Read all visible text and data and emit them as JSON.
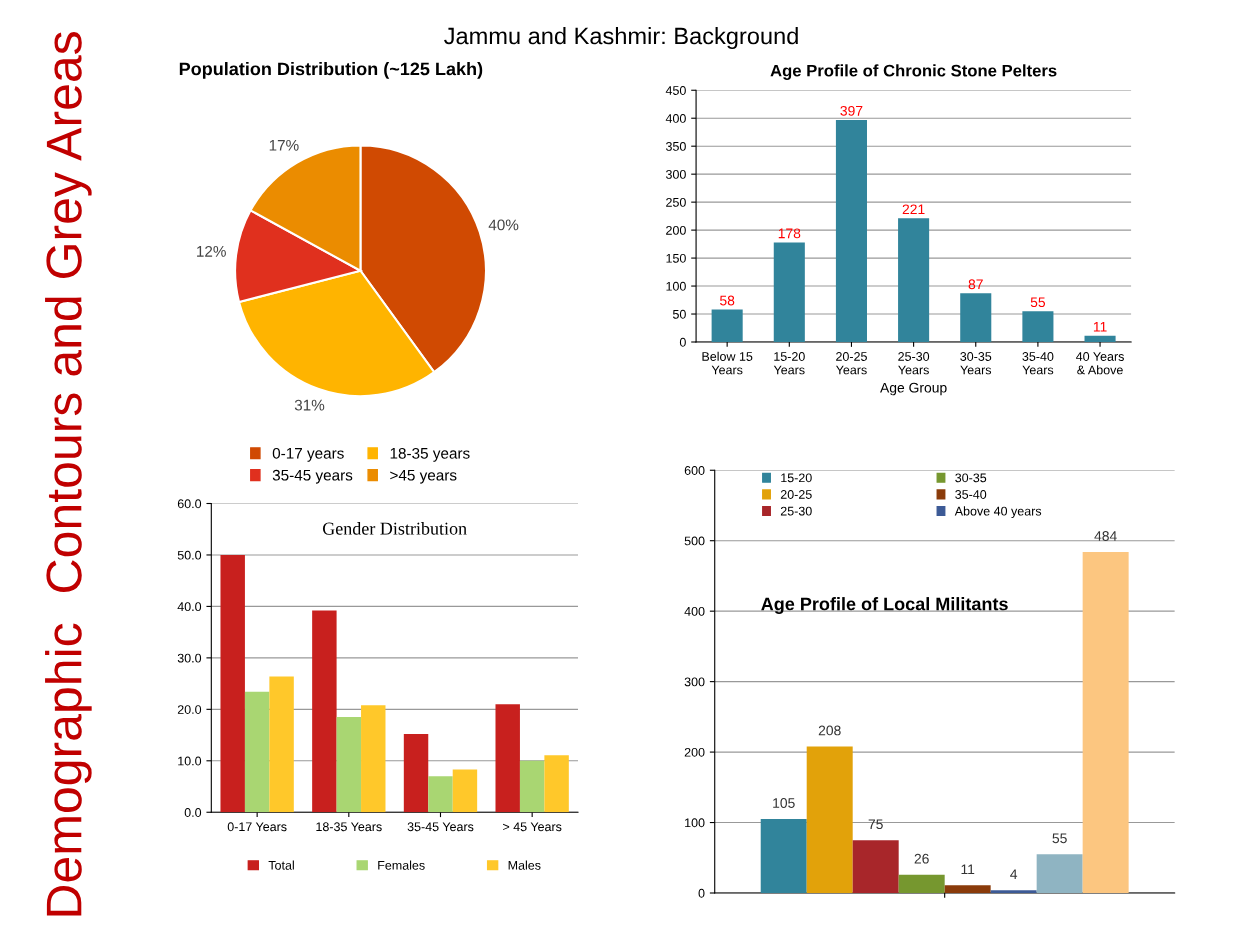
{
  "chart_data": [
    {
      "type": "pie",
      "title": "Population Distribution (~125 Lakh)",
      "categories": [
        "0-17 years",
        "18-35 years",
        "35-45 years",
        ">45 years"
      ],
      "values": [
        40,
        31,
        12,
        17
      ],
      "colors": [
        "#d04a02",
        "#ffb400",
        "#e0301e",
        "#eb8c00"
      ],
      "value_labels": [
        "40%",
        "31%",
        "12%",
        "17%"
      ],
      "legend": "bottom",
      "annotations": [
        "Jammu and Kashmir: Background",
        "Demographic  Contours and Grey Areas"
      ]
    },
    {
      "type": "bar",
      "title": "Age Profile of Chronic Stone Pelters",
      "xlabel": "Age Group",
      "categories": [
        "Below 15\nYears",
        "15-20\nYears",
        "20-25\nYears",
        "25-30\nYears",
        "30-35\nYears",
        "35-40\nYears",
        "40 Years\n& Above"
      ],
      "values": [
        58,
        178,
        397,
        221,
        87,
        55,
        11
      ],
      "color": "#31849b",
      "data_labels": true,
      "ylim": [
        0,
        450
      ],
      "yticks": [
        0,
        50,
        100,
        150,
        200,
        250,
        300,
        350,
        400,
        450
      ],
      "grid": "y"
    },
    {
      "type": "bar",
      "title": "Gender Distribution",
      "categories": [
        "0-17 Years",
        "18-35 Years",
        "35-45 Years",
        "> 45 Years"
      ],
      "series": [
        {
          "name": "Total",
          "color": "#c8201e",
          "values": [
            50.0,
            39.2,
            15.2,
            21.0
          ]
        },
        {
          "name": "Females",
          "color": "#a9d672",
          "values": [
            23.4,
            18.5,
            7.0,
            10.0
          ]
        },
        {
          "name": "Males",
          "color": "#ffc82a",
          "values": [
            26.4,
            20.8,
            8.3,
            11.1
          ]
        }
      ],
      "ylim": [
        0,
        60
      ],
      "yticks": [
        {
          "value": 0,
          "label": "0.0"
        },
        {
          "value": 10,
          "label": "10.0"
        },
        {
          "value": 20,
          "label": "20.0"
        },
        {
          "value": 30,
          "label": "30.0"
        },
        {
          "value": 40,
          "label": "40.0"
        },
        {
          "value": 50,
          "label": "50.0"
        },
        {
          "value": 60,
          "label": "60.0"
        }
      ],
      "grid": "y",
      "legend": "bottom"
    },
    {
      "type": "bar",
      "title": "Age Profile of Local Militants",
      "categories": [
        null
      ],
      "series": [
        {
          "name": "15-20",
          "color": "#31849b",
          "values": [
            105
          ]
        },
        {
          "name": "20-25",
          "color": "#e2a20a",
          "values": [
            208
          ]
        },
        {
          "name": "25-30",
          "color": "#a8262a",
          "values": [
            75
          ]
        },
        {
          "name": "30-35",
          "color": "#76972f",
          "values": [
            26
          ]
        },
        {
          "name": "35-40",
          "color": "#8a3b0a",
          "values": [
            11
          ]
        },
        {
          "name": "Above 40 years",
          "color": "#3c5a96",
          "values": [
            4
          ]
        },
        {
          "color": "#8fb4c2",
          "values": [
            55
          ]
        },
        {
          "color": "#fcc680",
          "values": [
            484
          ]
        }
      ],
      "data_labels": true,
      "ylim": [
        0,
        600
      ],
      "yticks": [
        0,
        100,
        200,
        300,
        400,
        500,
        600
      ],
      "grid": "y",
      "legend": "top"
    }
  ]
}
